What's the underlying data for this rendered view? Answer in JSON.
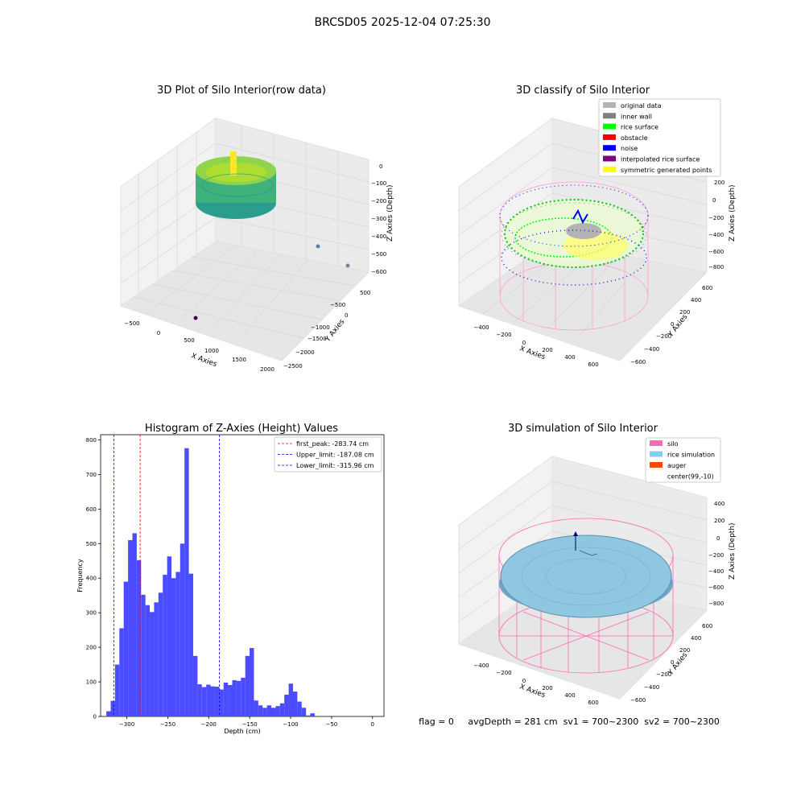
{
  "suptitle": "BRCSD05 2025-12-04 07:25:30",
  "status_line": "flag = 0     avgDepth = 281 cm  sv1 = 700~2300  sv2 = 700~2300",
  "colors": {
    "hist_bar": "#4b4bff",
    "first_peak_line": "#ff0000",
    "limit_line": "#0000ff",
    "pane": "#f2f2f2",
    "grid": "#dcdcdc"
  },
  "panel_raw": {
    "title": "3D Plot of Silo Interior(row data)",
    "xlabel": "X Axies",
    "ylabel": "Y Axies",
    "zlabel": "Z Axies (Depth)",
    "xticks": [
      "−500",
      "0",
      "500",
      "1000",
      "1500",
      "2000"
    ],
    "yticks": [
      "500",
      "0",
      "−500",
      "−1000",
      "−1500",
      "−2000",
      "−2500"
    ],
    "zticks": [
      "0",
      "−100",
      "−200",
      "−300",
      "−400",
      "−500",
      "−600"
    ]
  },
  "panel_classify": {
    "title": "3D classify of Silo Interior",
    "xlabel": "X Axies",
    "ylabel": "Y Axies",
    "zlabel": "Z Axies (Depth)",
    "xticks": [
      "−400",
      "−200",
      "0",
      "200",
      "400",
      "600"
    ],
    "yticks": [
      "600",
      "400",
      "200",
      "0",
      "−200",
      "−400",
      "−600"
    ],
    "zticks": [
      "200",
      "0",
      "−200",
      "−400",
      "−600",
      "−800"
    ],
    "legend": [
      {
        "label": "original data",
        "color": "#b3b3b3"
      },
      {
        "label": "inner wall",
        "color": "#808080"
      },
      {
        "label": "rice surface",
        "color": "#00ff00"
      },
      {
        "label": "obstacle",
        "color": "#ff0000"
      },
      {
        "label": "noise",
        "color": "#0000ff"
      },
      {
        "label": "interpolated rice surface",
        "color": "#800080"
      },
      {
        "label": "symmetric generated points",
        "color": "#ffff00"
      }
    ]
  },
  "panel_sim": {
    "title": "3D simulation of Silo Interior",
    "xlabel": "X Axies",
    "ylabel": "Y Axies",
    "zlabel": "Z Axies (Depth)",
    "xticks": [
      "−400",
      "−200",
      "0",
      "200",
      "400",
      "600"
    ],
    "yticks": [
      "600",
      "400",
      "200",
      "0",
      "−200",
      "−400",
      "−600"
    ],
    "zticks": [
      "400",
      "200",
      "0",
      "−200",
      "−400",
      "−600",
      "−800"
    ],
    "legend": [
      {
        "label": "silo",
        "color": "#ff69b4"
      },
      {
        "label": "rice simulation",
        "color": "#87ceeb"
      },
      {
        "label": "auger",
        "color": "#ff4500"
      },
      {
        "label": "center(99,-10)",
        "color": "#ffffff"
      }
    ]
  },
  "chart_data": {
    "type": "bar",
    "title": "Histogram of Z-Axies (Height) Values",
    "xlabel": "Depth (cm)",
    "ylabel": "Frequency",
    "xlim": [
      -332,
      14
    ],
    "ylim": [
      0,
      815
    ],
    "xticks": [
      -300,
      -250,
      -200,
      -150,
      -100,
      -50,
      0
    ],
    "yticks": [
      0,
      100,
      200,
      300,
      400,
      500,
      600,
      700,
      800
    ],
    "bin_width": 5.3,
    "bin_start": -325,
    "values": [
      15,
      45,
      150,
      255,
      390,
      510,
      530,
      452,
      352,
      322,
      302,
      330,
      358,
      410,
      463,
      400,
      418,
      500,
      776,
      413,
      175,
      93,
      85,
      92,
      87,
      86,
      78,
      98,
      91,
      105,
      103,
      112,
      175,
      198,
      46,
      32,
      25,
      32,
      25,
      30,
      38,
      63,
      95,
      72,
      43,
      25,
      3,
      9
    ],
    "vlines": [
      {
        "x": -283.74,
        "label": "first_peak: -283.74 cm",
        "color": "#ff0000"
      },
      {
        "x": -187.08,
        "label": "Upper_limit: -187.08 cm",
        "color": "#0000ff"
      },
      {
        "x": -315.96,
        "label": "Lower_limit: -315.96 cm",
        "color": "#0000ff"
      }
    ]
  }
}
